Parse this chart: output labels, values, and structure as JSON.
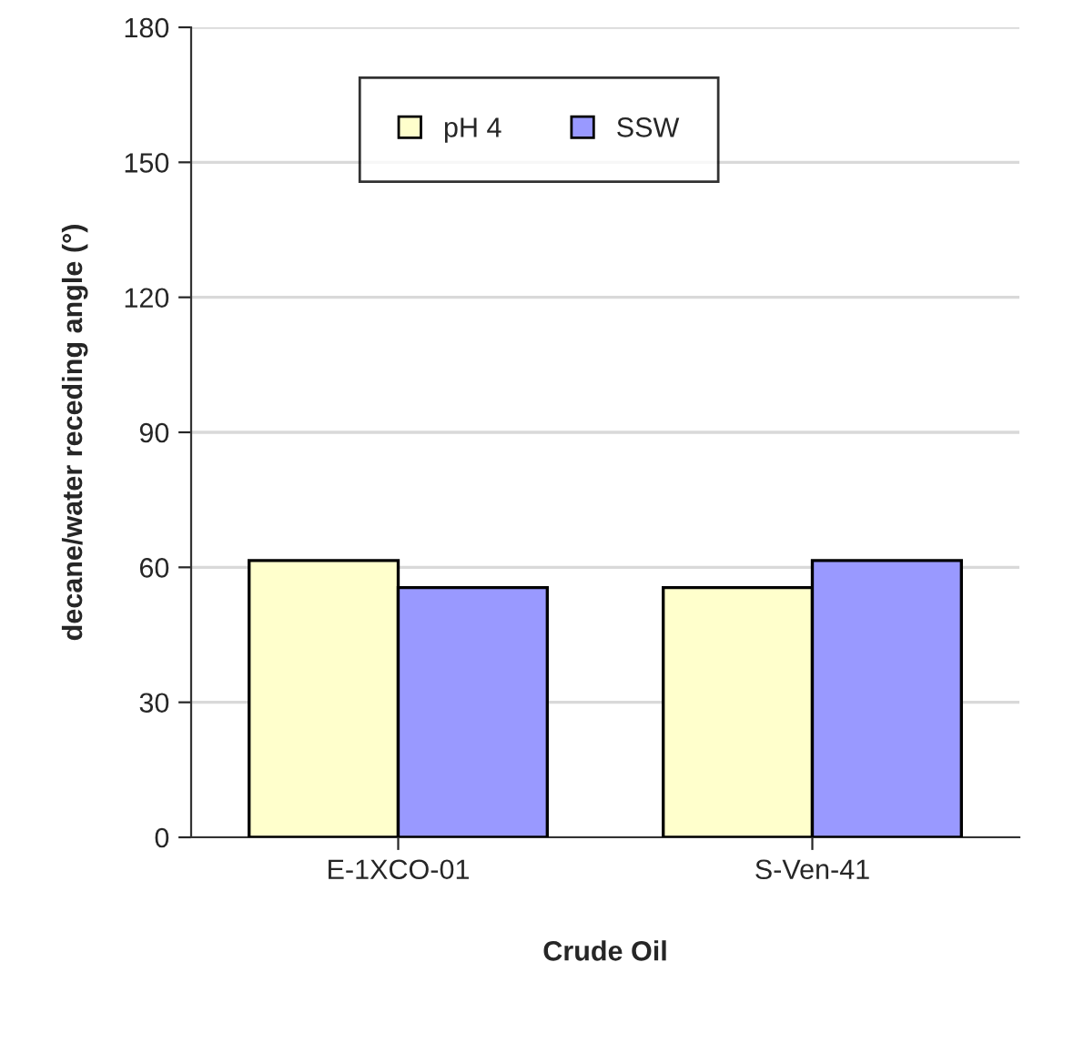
{
  "chart_data": {
    "type": "bar",
    "xlabel": "Crude Oil",
    "ylabel": "decane/water receding angle (°)",
    "categories": [
      "E-1XCO-01",
      "S-Ven-41"
    ],
    "series": [
      {
        "name": "pH 4",
        "color": "#ffffcc",
        "values": [
          61.5,
          55.5
        ]
      },
      {
        "name": "SSW",
        "color": "#9999ff",
        "values": [
          55.5,
          61.5
        ]
      }
    ],
    "ylim": [
      0,
      180
    ],
    "yticks": [
      0,
      30,
      60,
      90,
      120,
      150,
      180
    ],
    "grid": "y",
    "legend": "top"
  }
}
